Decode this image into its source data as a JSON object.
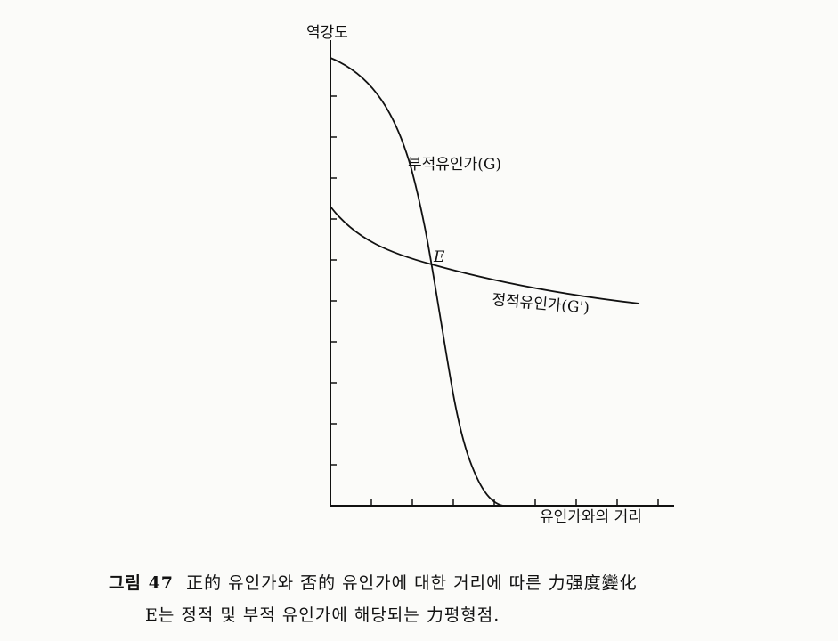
{
  "figure": {
    "y_axis_label": "역강도",
    "x_axis_label": "유인가와의 거리",
    "curve_labels": [
      "부적유인가(G)",
      "E",
      "정적유인가(G')"
    ]
  },
  "caption": {
    "number": "그림 47",
    "line1": "正的 유인가와 否的 유인가에 대한 거리에 따른 力强度變化",
    "line2": "E는 정적 및 부적 유인가에 해당되는 力평형점."
  }
}
